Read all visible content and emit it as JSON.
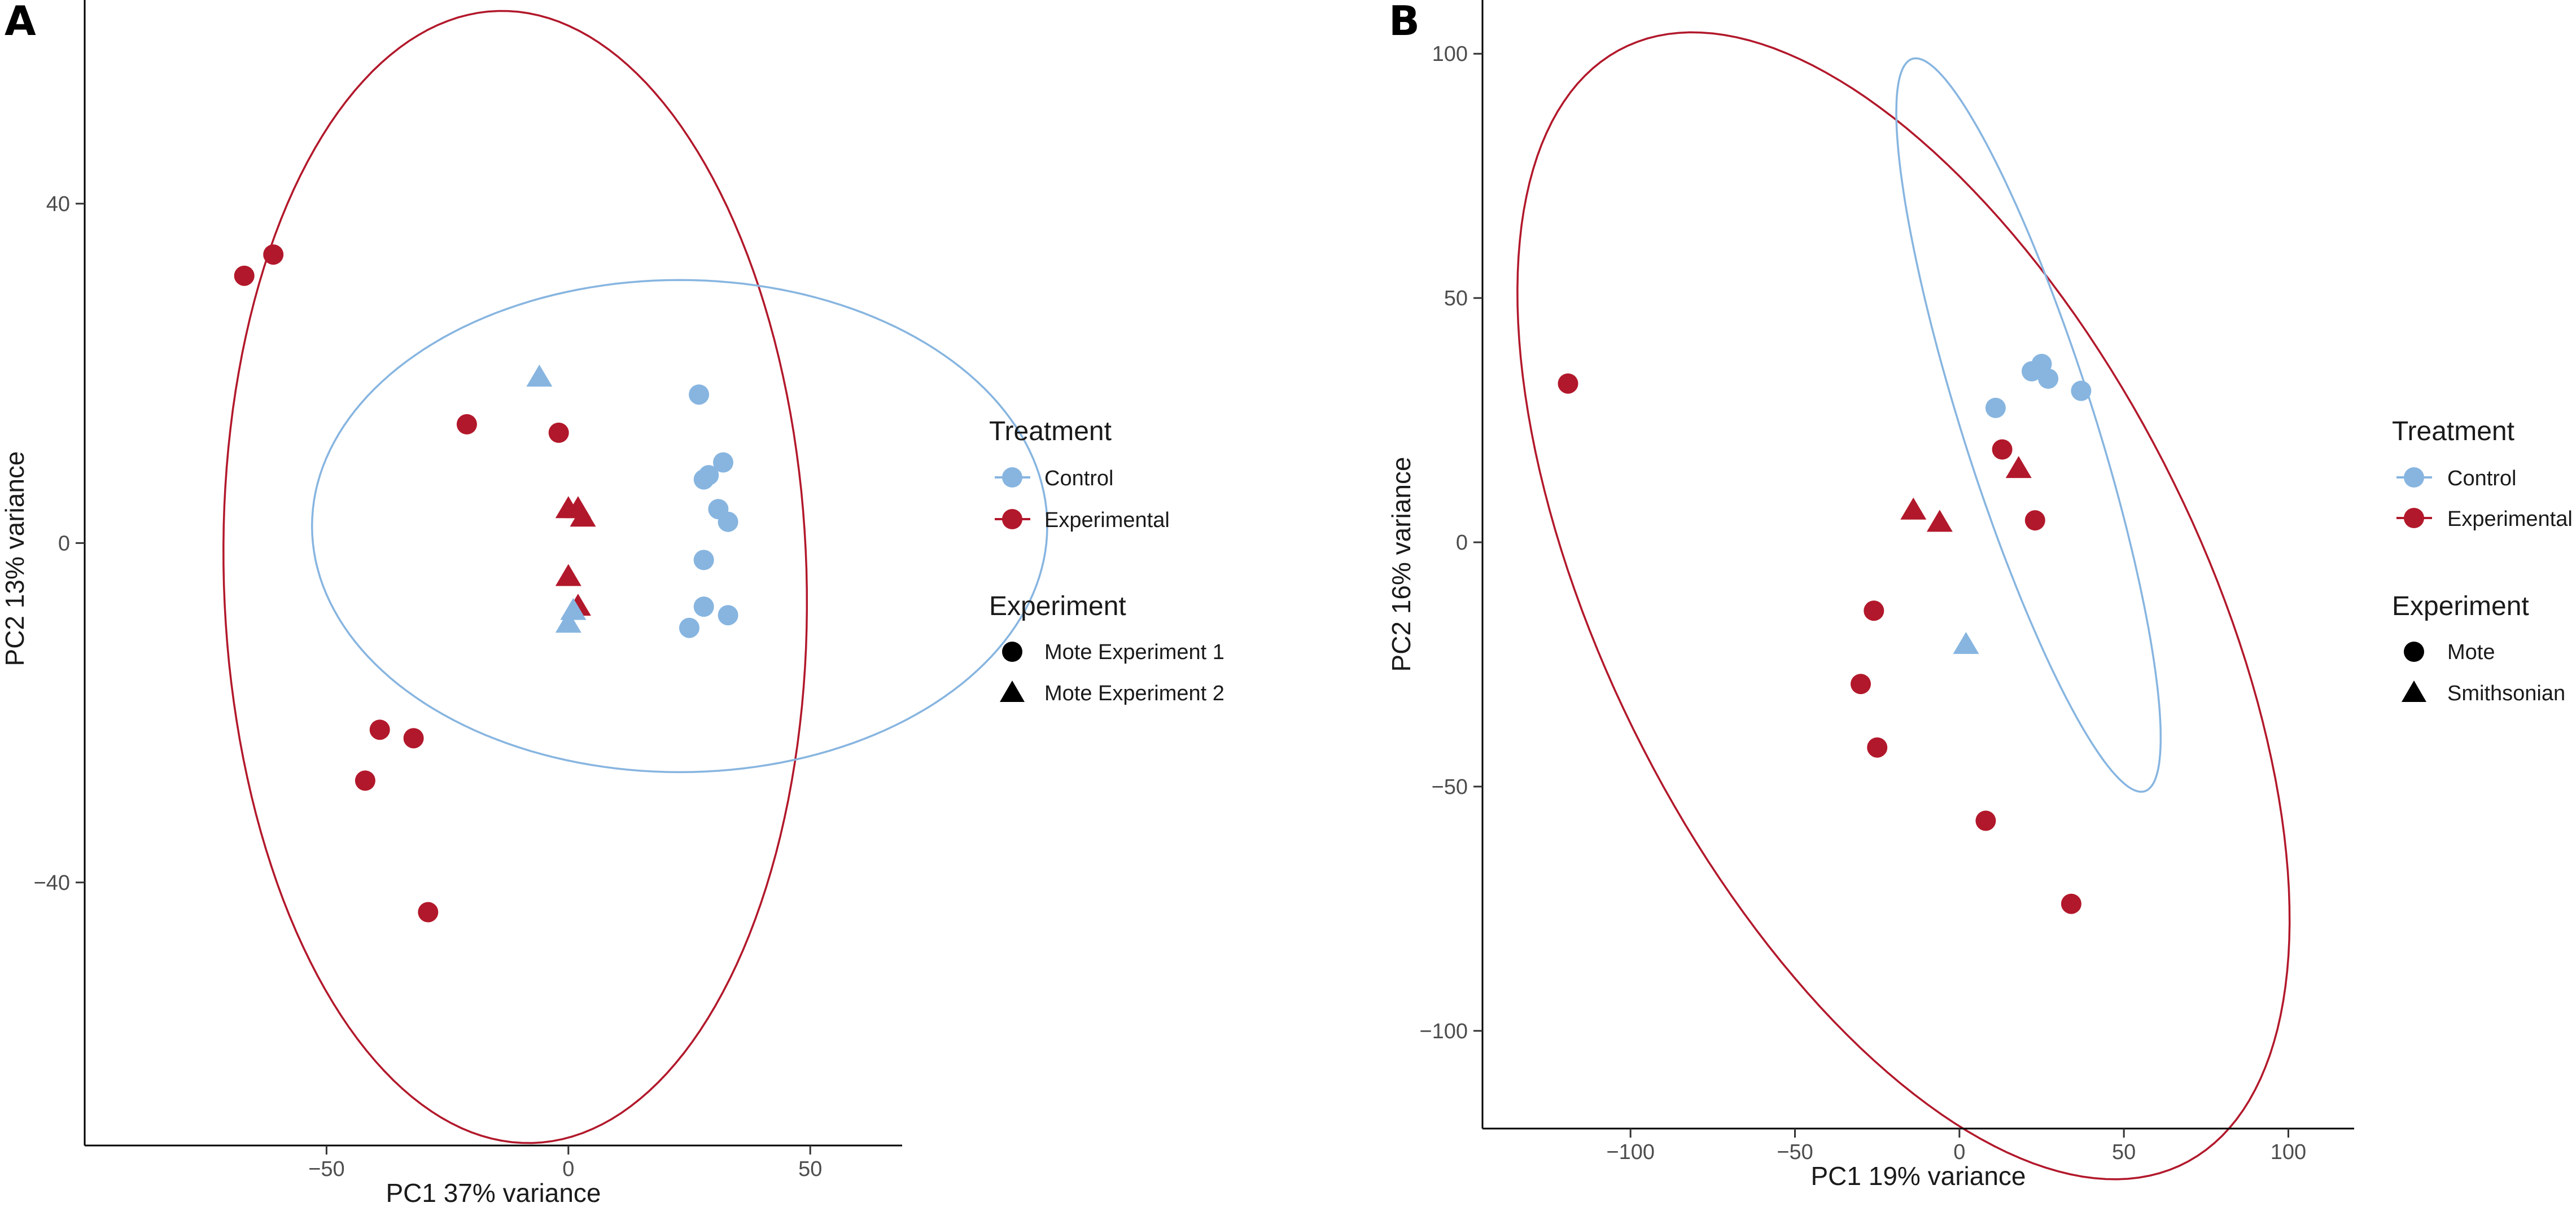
{
  "chart_data": [
    {
      "type": "scatter",
      "panel_label": "A",
      "xlabel": "PC1 37% variance",
      "ylabel": "PC2 13% variance",
      "xlim": [
        -100,
        69
      ],
      "ylim": [
        -71,
        64
      ],
      "x_ticks": [
        -50,
        0,
        50
      ],
      "x_tick_labels": [
        "−50",
        "0",
        "50"
      ],
      "y_ticks": [
        40,
        0,
        -40
      ],
      "y_tick_labels": [
        "40",
        "0",
        "−40"
      ],
      "grid": false,
      "legend_position": "right",
      "legend": {
        "treatment_title": "Treatment",
        "treatment_items": [
          {
            "label": "Control",
            "color": "#87b5e0"
          },
          {
            "label": "Experimental",
            "color": "#b2182b"
          }
        ],
        "experiment_title": "Experiment",
        "experiment_items": [
          {
            "label": "Mote Experiment 1",
            "shape": "circle"
          },
          {
            "label": "Mote Experiment 2",
            "shape": "triangle"
          }
        ]
      },
      "ellipses": [
        {
          "series": "Experimental",
          "center": [
            -11,
            -4
          ],
          "radii": [
            67,
            60
          ],
          "angle_deg": 102,
          "color": "#b2182b"
        },
        {
          "series": "Control",
          "center": [
            23,
            2
          ],
          "radii": [
            76,
            29
          ],
          "angle_deg": 0,
          "color": "#87b5e0"
        }
      ],
      "series": [
        {
          "name": "Experimental",
          "experiment": "Mote Experiment 1",
          "shape": "circle",
          "color": "#b2182b",
          "points": [
            [
              -67,
              31.5
            ],
            [
              -61,
              34
            ],
            [
              -21,
              14
            ],
            [
              -2,
              13
            ],
            [
              -39,
              -22
            ],
            [
              -32,
              -23
            ],
            [
              -42,
              -28
            ],
            [
              -29,
              -43.5
            ]
          ]
        },
        {
          "name": "Experimental",
          "experiment": "Mote Experiment 2",
          "shape": "triangle",
          "color": "#b2182b",
          "points": [
            [
              0,
              4
            ],
            [
              2,
              4
            ],
            [
              3,
              3
            ],
            [
              0,
              -4
            ],
            [
              2,
              -7.5
            ]
          ]
        },
        {
          "name": "Control",
          "experiment": "Mote Experiment 1",
          "shape": "circle",
          "color": "#87b5e0",
          "points": [
            [
              27,
              17.5
            ],
            [
              29,
              8
            ],
            [
              28,
              7.5
            ],
            [
              32,
              9.5
            ],
            [
              31,
              4
            ],
            [
              33,
              2.5
            ],
            [
              28,
              -2
            ],
            [
              28,
              -7.5
            ],
            [
              33,
              -8.5
            ],
            [
              25,
              -10
            ]
          ]
        },
        {
          "name": "Control",
          "experiment": "Mote Experiment 2",
          "shape": "triangle",
          "color": "#87b5e0",
          "points": [
            [
              -6,
              19.5
            ],
            [
              1,
              -8
            ],
            [
              0,
              -9.5
            ]
          ]
        }
      ]
    },
    {
      "type": "scatter",
      "panel_label": "B",
      "xlabel": "PC1 19% variance",
      "ylabel": "PC2 16% variance",
      "xlim": [
        -145,
        120
      ],
      "ylim": [
        -120,
        111
      ],
      "x_ticks": [
        -100,
        -50,
        0,
        50,
        100
      ],
      "x_tick_labels": [
        "−100",
        "−50",
        "0",
        "50",
        "100"
      ],
      "y_ticks": [
        100,
        50,
        0,
        -50,
        -100
      ],
      "y_tick_labels": [
        "100",
        "50",
        "0",
        "−50",
        "−100"
      ],
      "grid": false,
      "legend_position": "right",
      "legend": {
        "treatment_title": "Treatment",
        "treatment_items": [
          {
            "label": "Control",
            "color": "#87b5e0"
          },
          {
            "label": "Experimental",
            "color": "#b2182b"
          }
        ],
        "experiment_title": "Experiment",
        "experiment_items": [
          {
            "label": "Mote",
            "shape": "circle"
          },
          {
            "label": "Smithsonian",
            "shape": "triangle"
          }
        ]
      },
      "ellipses": [
        {
          "series": "Experimental",
          "center": [
            -17,
            -13
          ],
          "radii": [
            146,
            79
          ],
          "angle_deg": -45,
          "color": "#b2182b"
        },
        {
          "series": "Control",
          "center": [
            21,
            24
          ],
          "radii": [
            83,
            19
          ],
          "angle_deg": -64,
          "color": "#87b5e0"
        }
      ],
      "series": [
        {
          "name": "Control",
          "experiment": "Mote",
          "shape": "circle",
          "color": "#87b5e0",
          "points": [
            [
              11,
              27.5
            ],
            [
              22,
              35
            ],
            [
              25,
              36.5
            ],
            [
              27,
              33.5
            ],
            [
              37,
              31
            ]
          ]
        },
        {
          "name": "Control",
          "experiment": "Smithsonian",
          "shape": "triangle",
          "color": "#87b5e0",
          "points": [
            [
              2,
              -21
            ]
          ]
        },
        {
          "name": "Experimental",
          "experiment": "Mote",
          "shape": "circle",
          "color": "#b2182b",
          "points": [
            [
              -119,
              32.5
            ],
            [
              13,
              19
            ],
            [
              23,
              4.5
            ],
            [
              -26,
              -14
            ],
            [
              -30,
              -29
            ],
            [
              -25,
              -42
            ],
            [
              8,
              -57
            ],
            [
              34,
              -74
            ]
          ]
        },
        {
          "name": "Experimental",
          "experiment": "Smithsonian",
          "shape": "triangle",
          "color": "#b2182b",
          "points": [
            [
              -14,
              6.5
            ],
            [
              -6,
              4
            ],
            [
              18,
              15
            ]
          ]
        }
      ]
    }
  ]
}
